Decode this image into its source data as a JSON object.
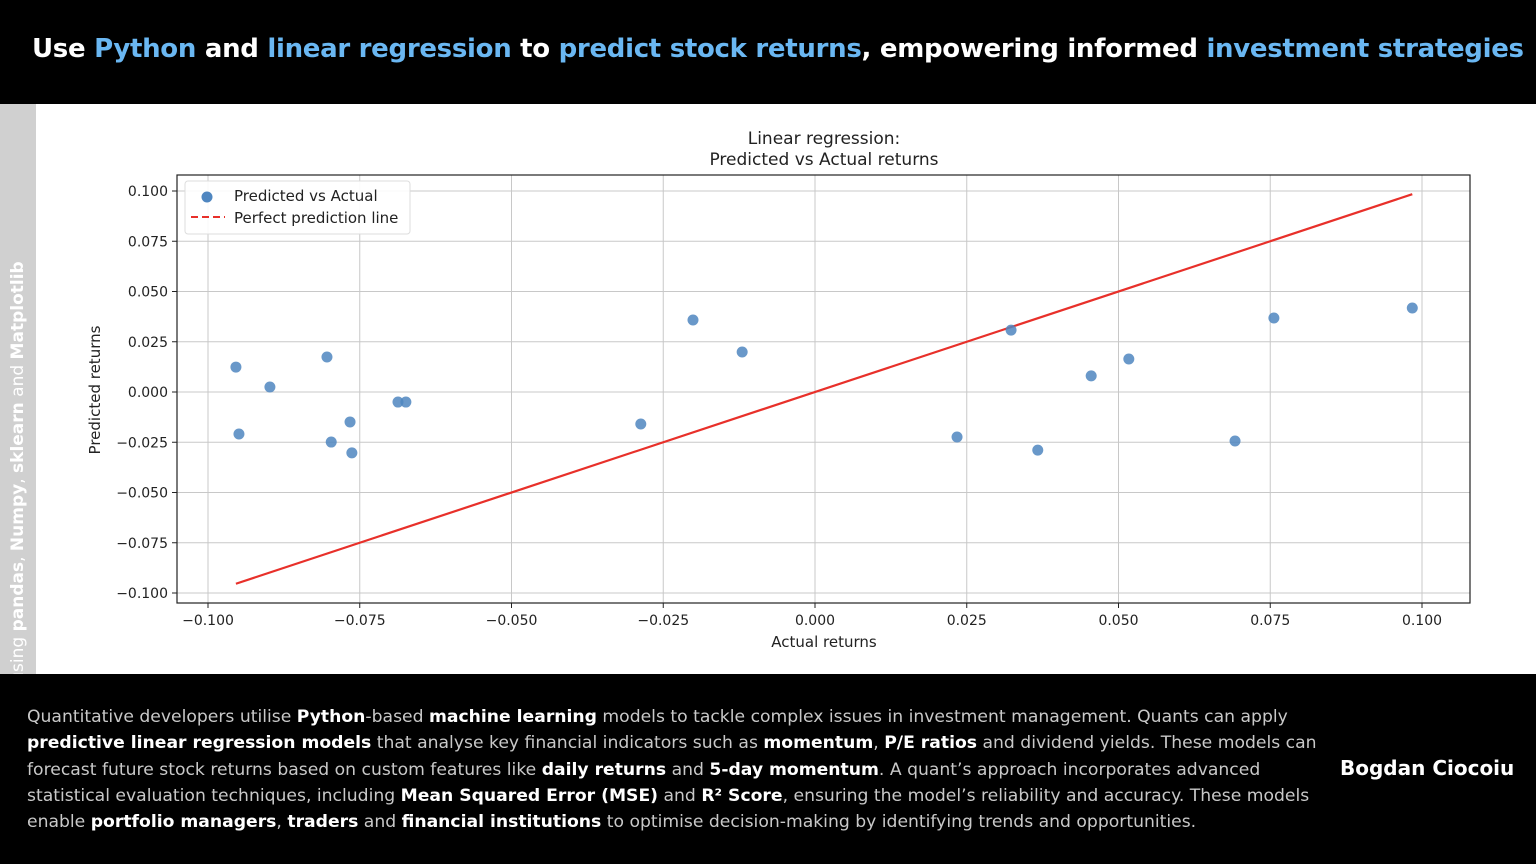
{
  "header": {
    "segments": [
      {
        "text": "Use ",
        "hl": false
      },
      {
        "text": "Python",
        "hl": true
      },
      {
        "text": " and ",
        "hl": false
      },
      {
        "text": "linear regression",
        "hl": true
      },
      {
        "text": " to ",
        "hl": false
      },
      {
        "text": "predict stock returns",
        "hl": true
      },
      {
        "text": ", empowering informed ",
        "hl": false
      },
      {
        "text": "investment strategies",
        "hl": true
      }
    ],
    "highlight_color": "#6ab7f2"
  },
  "sidebar": {
    "segments": [
      {
        "text": "Built using ",
        "bold": false
      },
      {
        "text": "pandas",
        "bold": true
      },
      {
        "text": ", ",
        "bold": false
      },
      {
        "text": "Numpy",
        "bold": true
      },
      {
        "text": ", ",
        "bold": false
      },
      {
        "text": "sklearn",
        "bold": true
      },
      {
        "text": " and ",
        "bold": false
      },
      {
        "text": "Matplotlib",
        "bold": true
      }
    ]
  },
  "chart_data": {
    "type": "scatter",
    "title": "Linear regression:\nPredicted vs Actual returns",
    "title_lines": [
      "Linear regression:",
      "Predicted vs Actual returns"
    ],
    "xlabel": "Actual returns",
    "ylabel": "Predicted returns",
    "xlim": [
      -0.105,
      0.107
    ],
    "ylim": [
      -0.105,
      0.108
    ],
    "xticks": [
      "−0.100",
      "−0.075",
      "−0.050",
      "−0.025",
      "0.000",
      "0.025",
      "0.050",
      "0.075",
      "0.100"
    ],
    "xtick_values": [
      -0.1,
      -0.075,
      -0.05,
      -0.025,
      0,
      0.025,
      0.05,
      0.075,
      0.1
    ],
    "yticks": [
      "0.100",
      "0.075",
      "0.050",
      "0.025",
      "0.000",
      "−0.025",
      "−0.050",
      "−0.075",
      "−0.100"
    ],
    "ytick_values": [
      0.1,
      0.075,
      0.05,
      0.025,
      0,
      -0.025,
      -0.05,
      -0.075,
      -0.1
    ],
    "grid": true,
    "legend_position": "top-left",
    "series": [
      {
        "name": "Predicted vs Actual",
        "type": "scatter",
        "color": "#4f86c0",
        "points": [
          [
            -0.0954,
            0.0124
          ],
          [
            -0.0949,
            -0.0209
          ],
          [
            -0.0898,
            0.0025
          ],
          [
            -0.0804,
            0.0174
          ],
          [
            -0.0797,
            -0.0249
          ],
          [
            -0.0766,
            -0.0149
          ],
          [
            -0.0763,
            -0.0303
          ],
          [
            -0.0687,
            -0.005
          ],
          [
            -0.0674,
            -0.005
          ],
          [
            -0.0287,
            -0.0159
          ],
          [
            -0.0201,
            0.0358
          ],
          [
            -0.012,
            0.0199
          ],
          [
            0.0234,
            -0.0224
          ],
          [
            0.0323,
            0.0308
          ],
          [
            0.0367,
            -0.0289
          ],
          [
            0.0455,
            0.008
          ],
          [
            0.0517,
            0.0164
          ],
          [
            0.0692,
            -0.0244
          ],
          [
            0.0756,
            0.0368
          ],
          [
            0.0984,
            0.0418
          ]
        ]
      },
      {
        "name": "Perfect prediction line",
        "type": "line",
        "style": "dashed",
        "color": "#e8302a",
        "points": [
          [
            -0.0954,
            -0.0954
          ],
          [
            0.0984,
            0.0984
          ]
        ]
      }
    ]
  },
  "footer": {
    "segments": [
      {
        "text": "Quantitative developers utilise ",
        "bold": false
      },
      {
        "text": "Python",
        "bold": true
      },
      {
        "text": "-based ",
        "bold": false
      },
      {
        "text": "machine learning",
        "bold": true
      },
      {
        "text": " models to tackle complex issues in investment management. Quants can apply ",
        "bold": false
      },
      {
        "text": "predictive linear regression models",
        "bold": true
      },
      {
        "text": " that analyse key financial indicators such as ",
        "bold": false
      },
      {
        "text": "momentum",
        "bold": true
      },
      {
        "text": ", ",
        "bold": false
      },
      {
        "text": "P/E ratios",
        "bold": true
      },
      {
        "text": " and dividend yields. These models can forecast future stock returns based on custom features like ",
        "bold": false
      },
      {
        "text": "daily returns",
        "bold": true
      },
      {
        "text": " and ",
        "bold": false
      },
      {
        "text": "5-day momentum",
        "bold": true
      },
      {
        "text": ". A quant’s approach incorporates advanced statistical evaluation techniques, including ",
        "bold": false
      },
      {
        "text": "Mean Squared Error (MSE)",
        "bold": true
      },
      {
        "text": " and ",
        "bold": false
      },
      {
        "text": "R² Score",
        "bold": true
      },
      {
        "text": ", ensuring the model’s reliability and accuracy. These models enable ",
        "bold": false
      },
      {
        "text": "portfolio managers",
        "bold": true
      },
      {
        "text": ", ",
        "bold": false
      },
      {
        "text": "traders",
        "bold": true
      },
      {
        "text": " and ",
        "bold": false
      },
      {
        "text": "financial institutions",
        "bold": true
      },
      {
        "text": " to optimise decision-making by identifying trends and opportunities.",
        "bold": false
      }
    ],
    "author": "Bogdan Ciocoiu"
  }
}
